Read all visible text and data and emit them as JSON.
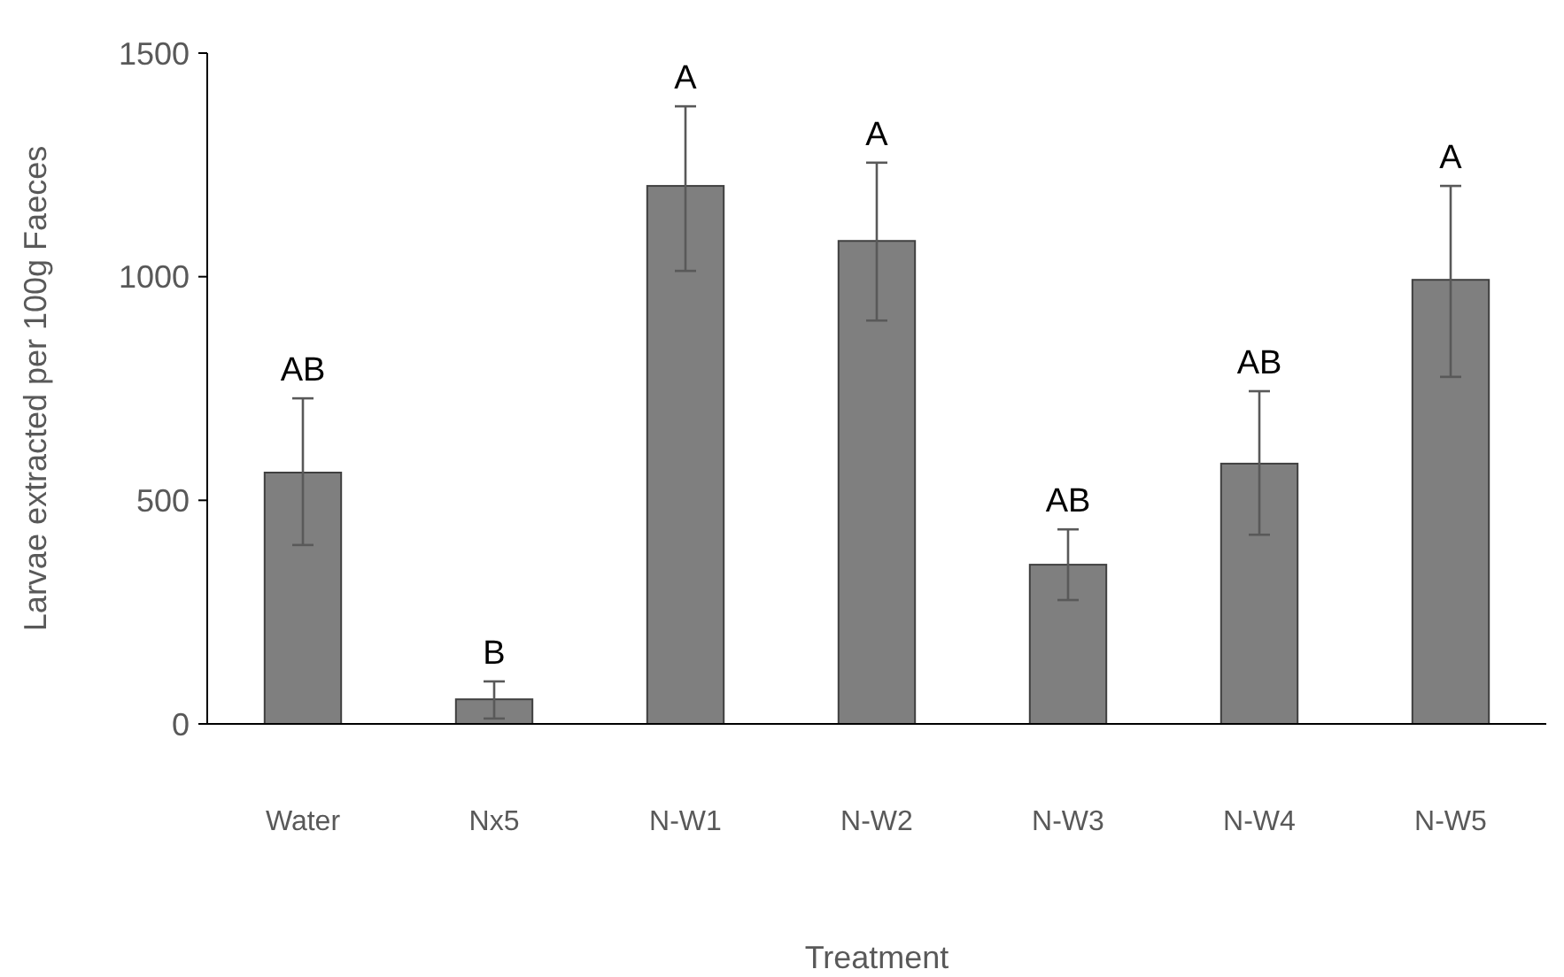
{
  "chart_data": {
    "type": "bar",
    "xlabel": "Treatment",
    "ylabel": "Larvae extracted per 100g Faeces",
    "categories": [
      "Water",
      "Nx5",
      "N-W1",
      "N-W2",
      "N-W3",
      "N-W4",
      "N-W5"
    ],
    "values": [
      562,
      55,
      1203,
      1080,
      356,
      582,
      993
    ],
    "errors": [
      [
        400,
        728
      ],
      [
        12,
        95
      ],
      [
        1013,
        1381
      ],
      [
        902,
        1255
      ],
      [
        277,
        435
      ],
      [
        423,
        744
      ],
      [
        776,
        1203
      ]
    ],
    "color": "#7f7f7f",
    "ylim": [
      0,
      1500
    ],
    "yticks": [
      0,
      500,
      1000,
      1500
    ],
    "grid": false,
    "annotations": [
      {
        "text": "AB",
        "x": "Water",
        "y": 728
      },
      {
        "text": "B",
        "x": "Nx5",
        "y": 95
      },
      {
        "text": "A",
        "x": "N-W1",
        "y": 1381
      },
      {
        "text": "A",
        "x": "N-W2",
        "y": 1255
      },
      {
        "text": "AB",
        "x": "N-W3",
        "y": 435
      },
      {
        "text": "AB",
        "x": "N-W4",
        "y": 744
      },
      {
        "text": "A",
        "x": "N-W5",
        "y": 1203
      }
    ]
  }
}
